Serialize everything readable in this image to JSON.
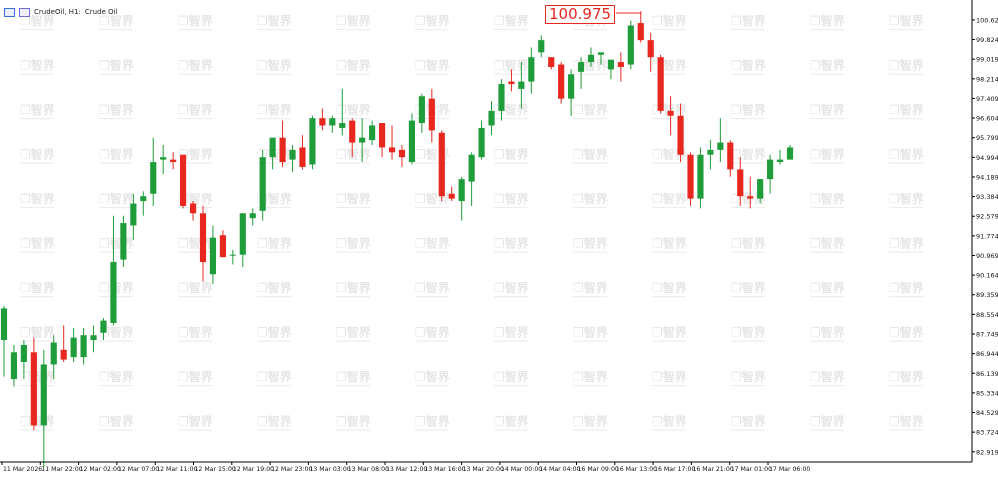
{
  "header": {
    "symbol_label": "CrudeOil, H1:",
    "symbol_desc": "Crude Oil",
    "icons": [
      "chart-window-icon",
      "indicator-window-icon"
    ]
  },
  "price_callout": "100.975",
  "watermark": "智界",
  "colors": {
    "bull": "#1f9d3a",
    "bear": "#e8271f",
    "axis": "#000000",
    "grid": "none",
    "callout": "#e8271f"
  },
  "chart_data": {
    "type": "candlestick",
    "grid": false,
    "ylim": [
      82.5,
      101.2
    ],
    "y_ticks": [
      "100.629",
      "99.824",
      "99.019",
      "98.214",
      "97.409",
      "96.604",
      "95.799",
      "94.994",
      "94.189",
      "93.384",
      "92.579",
      "91.774",
      "90.969",
      "90.164",
      "89.359",
      "88.554",
      "87.749",
      "86.944",
      "86.139",
      "85.334",
      "84.529",
      "83.724",
      "82.919"
    ],
    "x_ticks": [
      "11 Mar 2026",
      "11 Mar 22:00",
      "12 Mar 02:00",
      "12 Mar 07:00",
      "12 Mar 11:00",
      "12 Mar 15:00",
      "12 Mar 19:00",
      "12 Mar 23:00",
      "13 Mar 03:00",
      "13 Mar 08:00",
      "13 Mar 12:00",
      "13 Mar 16:00",
      "13 Mar 20:00",
      "14 Mar 00:00",
      "14 Mar 04:00",
      "16 Mar 09:00",
      "16 Mar 13:00",
      "16 Mar 17:00",
      "16 Mar 21:00",
      "17 Mar 01:00",
      "17 Mar 06:00"
    ],
    "candles": [
      {
        "o": 87.5,
        "h": 88.9,
        "l": 86.0,
        "c": 88.8
      },
      {
        "o": 85.9,
        "h": 87.3,
        "l": 85.6,
        "c": 87.0
      },
      {
        "o": 86.6,
        "h": 87.5,
        "l": 85.9,
        "c": 87.3
      },
      {
        "o": 87.0,
        "h": 87.6,
        "l": 83.8,
        "c": 84.0
      },
      {
        "o": 84.0,
        "h": 87.1,
        "l": 82.3,
        "c": 86.5
      },
      {
        "o": 86.5,
        "h": 87.7,
        "l": 85.9,
        "c": 87.4
      },
      {
        "o": 87.1,
        "h": 88.1,
        "l": 86.6,
        "c": 86.7
      },
      {
        "o": 86.8,
        "h": 88.0,
        "l": 86.6,
        "c": 87.6
      },
      {
        "o": 86.8,
        "h": 88.0,
        "l": 86.5,
        "c": 87.7
      },
      {
        "o": 87.5,
        "h": 88.1,
        "l": 87.0,
        "c": 87.7
      },
      {
        "o": 87.8,
        "h": 88.4,
        "l": 87.5,
        "c": 88.3
      },
      {
        "o": 88.2,
        "h": 92.6,
        "l": 88.1,
        "c": 90.7
      },
      {
        "o": 90.8,
        "h": 92.6,
        "l": 90.5,
        "c": 92.3
      },
      {
        "o": 92.2,
        "h": 93.5,
        "l": 91.6,
        "c": 93.1
      },
      {
        "o": 93.2,
        "h": 93.6,
        "l": 92.6,
        "c": 93.4
      },
      {
        "o": 93.5,
        "h": 95.8,
        "l": 93.0,
        "c": 94.8
      },
      {
        "o": 94.9,
        "h": 95.5,
        "l": 94.3,
        "c": 95.0
      },
      {
        "o": 94.9,
        "h": 95.2,
        "l": 94.5,
        "c": 94.8
      },
      {
        "o": 95.1,
        "h": 95.1,
        "l": 92.9,
        "c": 93.0
      },
      {
        "o": 93.1,
        "h": 93.2,
        "l": 92.4,
        "c": 92.7
      },
      {
        "o": 92.7,
        "h": 93.0,
        "l": 89.9,
        "c": 90.7
      },
      {
        "o": 90.2,
        "h": 92.2,
        "l": 89.8,
        "c": 91.7
      },
      {
        "o": 91.8,
        "h": 92.0,
        "l": 90.9,
        "c": 90.9
      },
      {
        "o": 91.0,
        "h": 91.2,
        "l": 90.6,
        "c": 91.0
      },
      {
        "o": 91.0,
        "h": 92.7,
        "l": 90.5,
        "c": 92.7
      },
      {
        "o": 92.5,
        "h": 92.9,
        "l": 92.2,
        "c": 92.7
      },
      {
        "o": 92.8,
        "h": 95.3,
        "l": 92.4,
        "c": 95.0
      },
      {
        "o": 95.0,
        "h": 95.8,
        "l": 94.5,
        "c": 95.8
      },
      {
        "o": 95.8,
        "h": 96.5,
        "l": 94.6,
        "c": 94.8
      },
      {
        "o": 94.9,
        "h": 95.5,
        "l": 94.4,
        "c": 95.3
      },
      {
        "o": 95.4,
        "h": 95.9,
        "l": 94.5,
        "c": 94.6
      },
      {
        "o": 94.7,
        "h": 96.7,
        "l": 94.5,
        "c": 96.6
      },
      {
        "o": 96.6,
        "h": 97.0,
        "l": 96.1,
        "c": 96.3
      },
      {
        "o": 96.3,
        "h": 96.7,
        "l": 96.0,
        "c": 96.6
      },
      {
        "o": 96.2,
        "h": 97.8,
        "l": 95.9,
        "c": 96.4
      },
      {
        "o": 96.5,
        "h": 96.6,
        "l": 95.0,
        "c": 95.6
      },
      {
        "o": 95.6,
        "h": 96.6,
        "l": 94.8,
        "c": 95.8
      },
      {
        "o": 95.7,
        "h": 96.5,
        "l": 95.5,
        "c": 96.3
      },
      {
        "o": 96.4,
        "h": 96.4,
        "l": 95.0,
        "c": 95.4
      },
      {
        "o": 95.4,
        "h": 96.3,
        "l": 94.9,
        "c": 95.2
      },
      {
        "o": 95.3,
        "h": 95.5,
        "l": 94.6,
        "c": 95.0
      },
      {
        "o": 94.8,
        "h": 96.8,
        "l": 94.7,
        "c": 96.5
      },
      {
        "o": 96.4,
        "h": 97.6,
        "l": 96.0,
        "c": 97.5
      },
      {
        "o": 97.4,
        "h": 97.8,
        "l": 95.6,
        "c": 96.1
      },
      {
        "o": 96.0,
        "h": 96.1,
        "l": 93.2,
        "c": 93.4
      },
      {
        "o": 93.5,
        "h": 93.8,
        "l": 93.2,
        "c": 93.3
      },
      {
        "o": 93.2,
        "h": 94.2,
        "l": 92.4,
        "c": 94.1
      },
      {
        "o": 94.0,
        "h": 95.2,
        "l": 93.0,
        "c": 95.1
      },
      {
        "o": 95.0,
        "h": 96.5,
        "l": 94.9,
        "c": 96.2
      },
      {
        "o": 96.3,
        "h": 97.3,
        "l": 95.9,
        "c": 96.9
      },
      {
        "o": 96.9,
        "h": 98.2,
        "l": 96.5,
        "c": 98.0
      },
      {
        "o": 98.1,
        "h": 98.6,
        "l": 97.7,
        "c": 98.0
      },
      {
        "o": 97.8,
        "h": 98.9,
        "l": 97.0,
        "c": 98.1
      },
      {
        "o": 98.1,
        "h": 99.5,
        "l": 97.6,
        "c": 99.1
      },
      {
        "o": 99.3,
        "h": 100.0,
        "l": 99.1,
        "c": 99.8
      },
      {
        "o": 99.1,
        "h": 99.1,
        "l": 98.6,
        "c": 98.7
      },
      {
        "o": 98.8,
        "h": 98.9,
        "l": 97.2,
        "c": 97.4
      },
      {
        "o": 97.4,
        "h": 98.6,
        "l": 96.7,
        "c": 98.4
      },
      {
        "o": 98.5,
        "h": 99.1,
        "l": 97.8,
        "c": 98.9
      },
      {
        "o": 98.9,
        "h": 99.5,
        "l": 98.7,
        "c": 99.2
      },
      {
        "o": 99.2,
        "h": 99.3,
        "l": 98.8,
        "c": 99.3
      },
      {
        "o": 98.6,
        "h": 99.0,
        "l": 98.2,
        "c": 99.0
      },
      {
        "o": 98.9,
        "h": 99.3,
        "l": 98.1,
        "c": 98.7
      },
      {
        "o": 98.8,
        "h": 100.6,
        "l": 98.6,
        "c": 100.4
      },
      {
        "o": 100.5,
        "h": 100.975,
        "l": 99.7,
        "c": 99.8
      },
      {
        "o": 99.8,
        "h": 100.1,
        "l": 98.5,
        "c": 99.1
      },
      {
        "o": 99.1,
        "h": 99.2,
        "l": 96.8,
        "c": 96.9
      },
      {
        "o": 96.9,
        "h": 97.5,
        "l": 95.9,
        "c": 96.7
      },
      {
        "o": 96.7,
        "h": 97.2,
        "l": 94.8,
        "c": 95.1
      },
      {
        "o": 95.1,
        "h": 95.2,
        "l": 93.0,
        "c": 93.3
      },
      {
        "o": 93.3,
        "h": 95.4,
        "l": 92.9,
        "c": 95.1
      },
      {
        "o": 95.1,
        "h": 95.7,
        "l": 94.5,
        "c": 95.3
      },
      {
        "o": 95.3,
        "h": 96.6,
        "l": 94.8,
        "c": 95.6
      },
      {
        "o": 95.6,
        "h": 95.7,
        "l": 94.2,
        "c": 94.5
      },
      {
        "o": 94.5,
        "h": 95.0,
        "l": 93.0,
        "c": 93.4
      },
      {
        "o": 93.4,
        "h": 94.2,
        "l": 92.9,
        "c": 93.3
      },
      {
        "o": 93.3,
        "h": 94.1,
        "l": 93.1,
        "c": 94.1
      },
      {
        "o": 94.1,
        "h": 95.1,
        "l": 93.5,
        "c": 94.9
      },
      {
        "o": 94.8,
        "h": 95.3,
        "l": 94.7,
        "c": 94.9
      },
      {
        "o": 94.9,
        "h": 95.5,
        "l": 94.9,
        "c": 95.4
      }
    ]
  }
}
